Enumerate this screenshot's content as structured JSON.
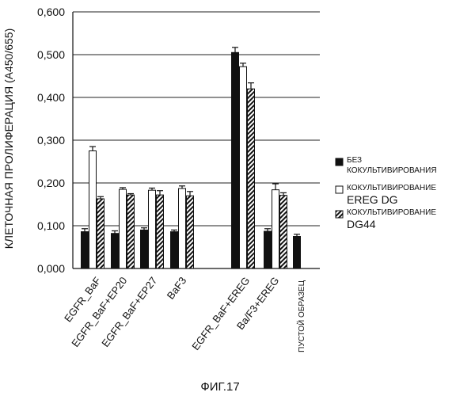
{
  "chart_data": {
    "type": "bar",
    "ylabel": "КЛЕТОЧНАЯ ПРОЛИФЕРАЦИЯ (A450/655)",
    "ylim": [
      0,
      0.6
    ],
    "yticks": [
      "0,000",
      "0,100",
      "0,200",
      "0,300",
      "0,400",
      "0,500",
      "0,600"
    ],
    "grid": true,
    "legend_position": "right",
    "categories": [
      "EGFR_BaF",
      "EGFR_BaF+EP20",
      "EGFR_BaF+EP27",
      "BaF3",
      "EGFR_BaF+EREG",
      "Ba/F3+EREG",
      "ПУСТОЙ ОБРАЗЕЦ"
    ],
    "category_group_gap_after": [
      3
    ],
    "series": [
      {
        "name_lines": [
          "БЕЗ",
          "КОКУЛЬТИВИРОВАНИЯ"
        ],
        "style": "solid",
        "color": "#111111",
        "values": [
          0.086,
          0.082,
          0.09,
          0.086,
          0.505,
          0.087,
          0.075
        ],
        "errors": [
          0.007,
          0.006,
          0.005,
          0.004,
          0.012,
          0.006,
          0.005
        ]
      },
      {
        "name_lines": [
          "КОКУЛЬТИВИРОВАНИЕ",
          "EREG DG"
        ],
        "style": "open",
        "color": "#ffffff",
        "values": [
          0.275,
          0.185,
          0.183,
          0.187,
          0.472,
          0.184,
          null
        ],
        "errors": [
          0.01,
          0.004,
          0.005,
          0.006,
          0.008,
          0.014,
          null
        ]
      },
      {
        "name_lines": [
          "КОКУЛЬТИВИРОВАНИЕ",
          "DG44"
        ],
        "style": "hatched",
        "color": "#111111",
        "values": [
          0.163,
          0.172,
          0.172,
          0.17,
          0.42,
          0.171,
          null
        ],
        "errors": [
          0.005,
          0.003,
          0.01,
          0.01,
          0.014,
          0.006,
          null
        ]
      }
    ]
  },
  "caption": "ФИГ.17"
}
